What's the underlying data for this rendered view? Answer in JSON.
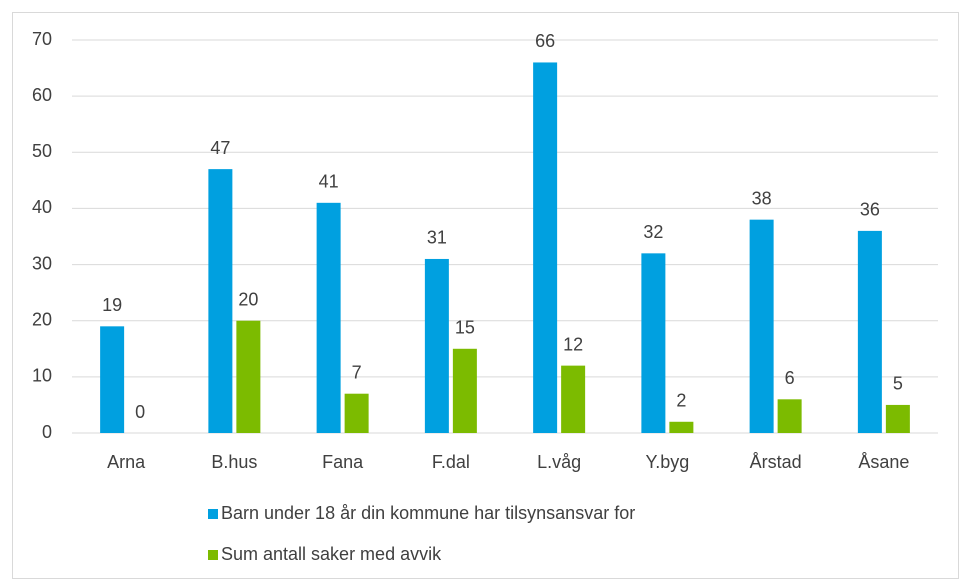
{
  "chart_data": {
    "type": "bar",
    "categories": [
      "Arna",
      "B.hus",
      "Fana",
      "F.dal",
      "L.våg",
      "Y.byg",
      "Årstad",
      "Åsane"
    ],
    "series": [
      {
        "name": "Barn under 18 år din kommune har tilsynsansvar for",
        "color": "#00a0e0",
        "values": [
          19,
          47,
          41,
          31,
          66,
          32,
          38,
          36
        ]
      },
      {
        "name": "Sum antall saker med avvik",
        "color": "#7cbb00",
        "values": [
          0,
          20,
          7,
          15,
          12,
          2,
          6,
          5
        ]
      }
    ],
    "ylim": [
      0,
      70
    ],
    "yticks": [
      0,
      10,
      20,
      30,
      40,
      50,
      60,
      70
    ],
    "grid": true,
    "legend": "bottom"
  }
}
